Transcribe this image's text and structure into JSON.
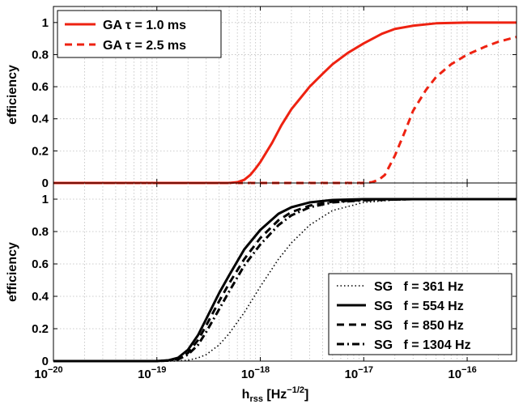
{
  "chart_data": [
    {
      "type": "line",
      "panel": "top",
      "xscale": "log",
      "xlim": [
        1e-20,
        3e-16
      ],
      "ylim": [
        0,
        1.1
      ],
      "yticks": [
        "0",
        "0.2",
        "0.4",
        "0.6",
        "0.8",
        "1"
      ],
      "ytick_values": [
        0,
        0.2,
        0.4,
        0.6,
        0.8,
        1
      ],
      "ylabel": "efficiency",
      "grid": true,
      "legend_position": "top-left",
      "series": [
        {
          "name": "GA τ = 1.0 ms",
          "color": "#ee2211",
          "style": "solid",
          "x": [
            1e-20,
            1e-19,
            5e-19,
            6e-19,
            7e-19,
            8e-19,
            9e-19,
            1e-18,
            1.3e-18,
            1.6e-18,
            2e-18,
            3e-18,
            4e-18,
            5e-18,
            7e-18,
            1e-17,
            1.5e-17,
            2e-17,
            3e-17,
            5e-17,
            1e-16,
            2e-16,
            3e-16
          ],
          "y": [
            0,
            0,
            0,
            0.005,
            0.02,
            0.05,
            0.09,
            0.13,
            0.25,
            0.36,
            0.46,
            0.6,
            0.68,
            0.74,
            0.81,
            0.87,
            0.93,
            0.96,
            0.98,
            0.995,
            1.0,
            1.0,
            1.0
          ]
        },
        {
          "name": "GA τ = 2.5 ms",
          "color": "#ee2211",
          "style": "dashed",
          "x": [
            1e-20,
            5e-18,
            1e-17,
            1.2e-17,
            1.4e-17,
            1.6e-17,
            2e-17,
            2.5e-17,
            3e-17,
            4e-17,
            5e-17,
            7e-17,
            1e-16,
            1.5e-16,
            2e-16,
            3e-16
          ],
          "y": [
            0,
            0,
            0,
            0.005,
            0.02,
            0.05,
            0.17,
            0.32,
            0.45,
            0.58,
            0.66,
            0.74,
            0.8,
            0.85,
            0.88,
            0.91
          ]
        }
      ]
    },
    {
      "type": "line",
      "panel": "bottom",
      "xscale": "log",
      "xlim": [
        1e-20,
        3e-16
      ],
      "ylim": [
        0,
        1.1
      ],
      "xticks": [
        {
          "value": 1e-20,
          "base": "10",
          "exp": "−20"
        },
        {
          "value": 1e-19,
          "base": "10",
          "exp": "−19"
        },
        {
          "value": 1e-18,
          "base": "10",
          "exp": "−18"
        },
        {
          "value": 1e-17,
          "base": "10",
          "exp": "−17"
        },
        {
          "value": 1e-16,
          "base": "10",
          "exp": "−16"
        }
      ],
      "yticks": [
        "0",
        "0.2",
        "0.4",
        "0.6",
        "0.8",
        "1"
      ],
      "ytick_values": [
        0,
        0.2,
        0.4,
        0.6,
        0.8,
        1
      ],
      "xlabel": {
        "main": "h",
        "sub": "rss",
        "unit": " [Hz",
        "unit_exp": "−1/2",
        "unit_end": "]"
      },
      "ylabel": "efficiency",
      "grid": true,
      "legend_position": "bottom-right",
      "series": [
        {
          "name": "SG   f = 361 Hz",
          "color": "#000000",
          "style": "dotted",
          "x": [
            1e-20,
            1e-19,
            1.5e-19,
            2e-19,
            2.5e-19,
            3e-19,
            4e-19,
            5e-19,
            7e-19,
            1e-18,
            1.5e-18,
            2e-18,
            3e-18,
            5e-18,
            1e-17,
            2e-17,
            5e-17,
            1e-16,
            3e-16
          ],
          "y": [
            0,
            0,
            0,
            0.005,
            0.02,
            0.04,
            0.1,
            0.17,
            0.3,
            0.46,
            0.63,
            0.73,
            0.84,
            0.93,
            0.98,
            0.995,
            1.0,
            1.0,
            1.0
          ]
        },
        {
          "name": "SG   f = 554 Hz",
          "color": "#000000",
          "style": "solid",
          "x": [
            1e-20,
            1e-19,
            1.3e-19,
            1.6e-19,
            2e-19,
            2.5e-19,
            3e-19,
            4e-19,
            5e-19,
            7e-19,
            1e-18,
            1.5e-18,
            2e-18,
            3e-18,
            5e-18,
            1e-17,
            3e-17,
            1e-16,
            3e-16
          ],
          "y": [
            0,
            0,
            0.005,
            0.02,
            0.07,
            0.16,
            0.26,
            0.42,
            0.53,
            0.69,
            0.81,
            0.91,
            0.95,
            0.98,
            0.995,
            1.0,
            1.0,
            1.0,
            1.0
          ]
        },
        {
          "name": "SG   f = 850 Hz",
          "color": "#000000",
          "style": "dashed",
          "x": [
            1e-20,
            1e-19,
            1.3e-19,
            1.6e-19,
            2e-19,
            2.5e-19,
            3e-19,
            4e-19,
            5e-19,
            7e-19,
            1e-18,
            1.5e-18,
            2e-18,
            3e-18,
            5e-18,
            1e-17,
            3e-17,
            1e-16,
            3e-16
          ],
          "y": [
            0,
            0,
            0.004,
            0.015,
            0.05,
            0.13,
            0.22,
            0.37,
            0.48,
            0.63,
            0.76,
            0.87,
            0.92,
            0.96,
            0.985,
            0.995,
            1.0,
            1.0,
            1.0
          ]
        },
        {
          "name": "SG   f = 1304 Hz",
          "color": "#000000",
          "style": "dashdot",
          "x": [
            1e-20,
            1e-19,
            1.3e-19,
            1.6e-19,
            2e-19,
            2.5e-19,
            3e-19,
            4e-19,
            5e-19,
            7e-19,
            1e-18,
            1.5e-18,
            2e-18,
            3e-18,
            5e-18,
            1e-17,
            3e-17,
            1e-16,
            3e-16
          ],
          "y": [
            0,
            0,
            0.003,
            0.01,
            0.04,
            0.1,
            0.18,
            0.32,
            0.43,
            0.59,
            0.72,
            0.84,
            0.9,
            0.95,
            0.98,
            0.993,
            1.0,
            1.0,
            1.0
          ]
        }
      ]
    }
  ]
}
